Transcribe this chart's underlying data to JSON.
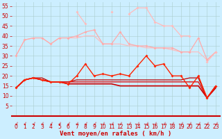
{
  "xlabel": "Vent moyen/en rafales ( km/h )",
  "x": [
    0,
    1,
    2,
    3,
    4,
    5,
    6,
    7,
    8,
    9,
    10,
    11,
    12,
    13,
    14,
    15,
    16,
    17,
    18,
    19,
    20,
    21,
    22,
    23
  ],
  "ylim": [
    0,
    57
  ],
  "yticks": [
    5,
    10,
    15,
    20,
    25,
    30,
    35,
    40,
    45,
    50,
    55
  ],
  "bg_color": "#cceeff",
  "grid_color": "#aacccc",
  "line_rafales_light": {
    "y": [
      null,
      null,
      null,
      null,
      null,
      null,
      null,
      52,
      46,
      null,
      null,
      52,
      null,
      51,
      54,
      54,
      47,
      45,
      45,
      40,
      40,
      null,
      27,
      32
    ],
    "color": "#ffbbbb",
    "lw": 0.9,
    "marker": "D",
    "ms": 2.0
  },
  "line_moy_light": {
    "y": [
      30,
      38,
      39,
      39,
      36,
      39,
      39,
      40,
      42,
      43,
      36,
      36,
      42,
      36,
      35,
      35,
      34,
      34,
      34,
      32,
      32,
      39,
      28,
      32
    ],
    "color": "#ffaaaa",
    "lw": 0.9,
    "marker": "D",
    "ms": 2.0
  },
  "line_moy_flat": {
    "y": [
      30,
      38,
      39,
      39,
      36,
      39,
      39,
      39,
      40,
      40,
      36,
      36,
      36,
      35,
      35,
      34,
      34,
      34,
      33,
      32,
      32,
      32,
      28,
      32
    ],
    "color": "#ffbbbb",
    "lw": 0.8,
    "marker": null,
    "ms": 0
  },
  "line_rafales_dark": {
    "y": [
      14,
      18,
      19,
      18,
      17,
      17,
      16,
      20,
      26,
      20,
      21,
      20,
      21,
      20,
      25,
      30,
      25,
      26,
      20,
      20,
      14,
      20,
      9,
      15
    ],
    "color": "#ff2200",
    "lw": 1.0,
    "marker": "D",
    "ms": 2.0
  },
  "line_moy_dark1": {
    "y": [
      14,
      18,
      19,
      18,
      17,
      17,
      16,
      16,
      16,
      16,
      16,
      16,
      15,
      15,
      15,
      15,
      15,
      15,
      15,
      15,
      15,
      15,
      9,
      14
    ],
    "color": "#cc0000",
    "lw": 1.2,
    "marker": null,
    "ms": 0
  },
  "line_moy_dark2": {
    "y": [
      14,
      18,
      19,
      18,
      17,
      17,
      17,
      17,
      17,
      17,
      17,
      17,
      17,
      17,
      17,
      17,
      17,
      17,
      17,
      17,
      17,
      17,
      9,
      15
    ],
    "color": "#dd1111",
    "lw": 1.0,
    "marker": null,
    "ms": 0
  },
  "line_moy_dark3": {
    "y": [
      14,
      18,
      19,
      19,
      17,
      17,
      17,
      18,
      18,
      18,
      18,
      18,
      18,
      18,
      18,
      18,
      18,
      18,
      18,
      18,
      19,
      19,
      9,
      15
    ],
    "color": "#bb0000",
    "lw": 0.9,
    "marker": null,
    "ms": 0
  },
  "arrow_color": "#cc0000",
  "tick_color": "#cc0000",
  "label_fontsize": 6.5,
  "tick_fontsize": 5.5
}
